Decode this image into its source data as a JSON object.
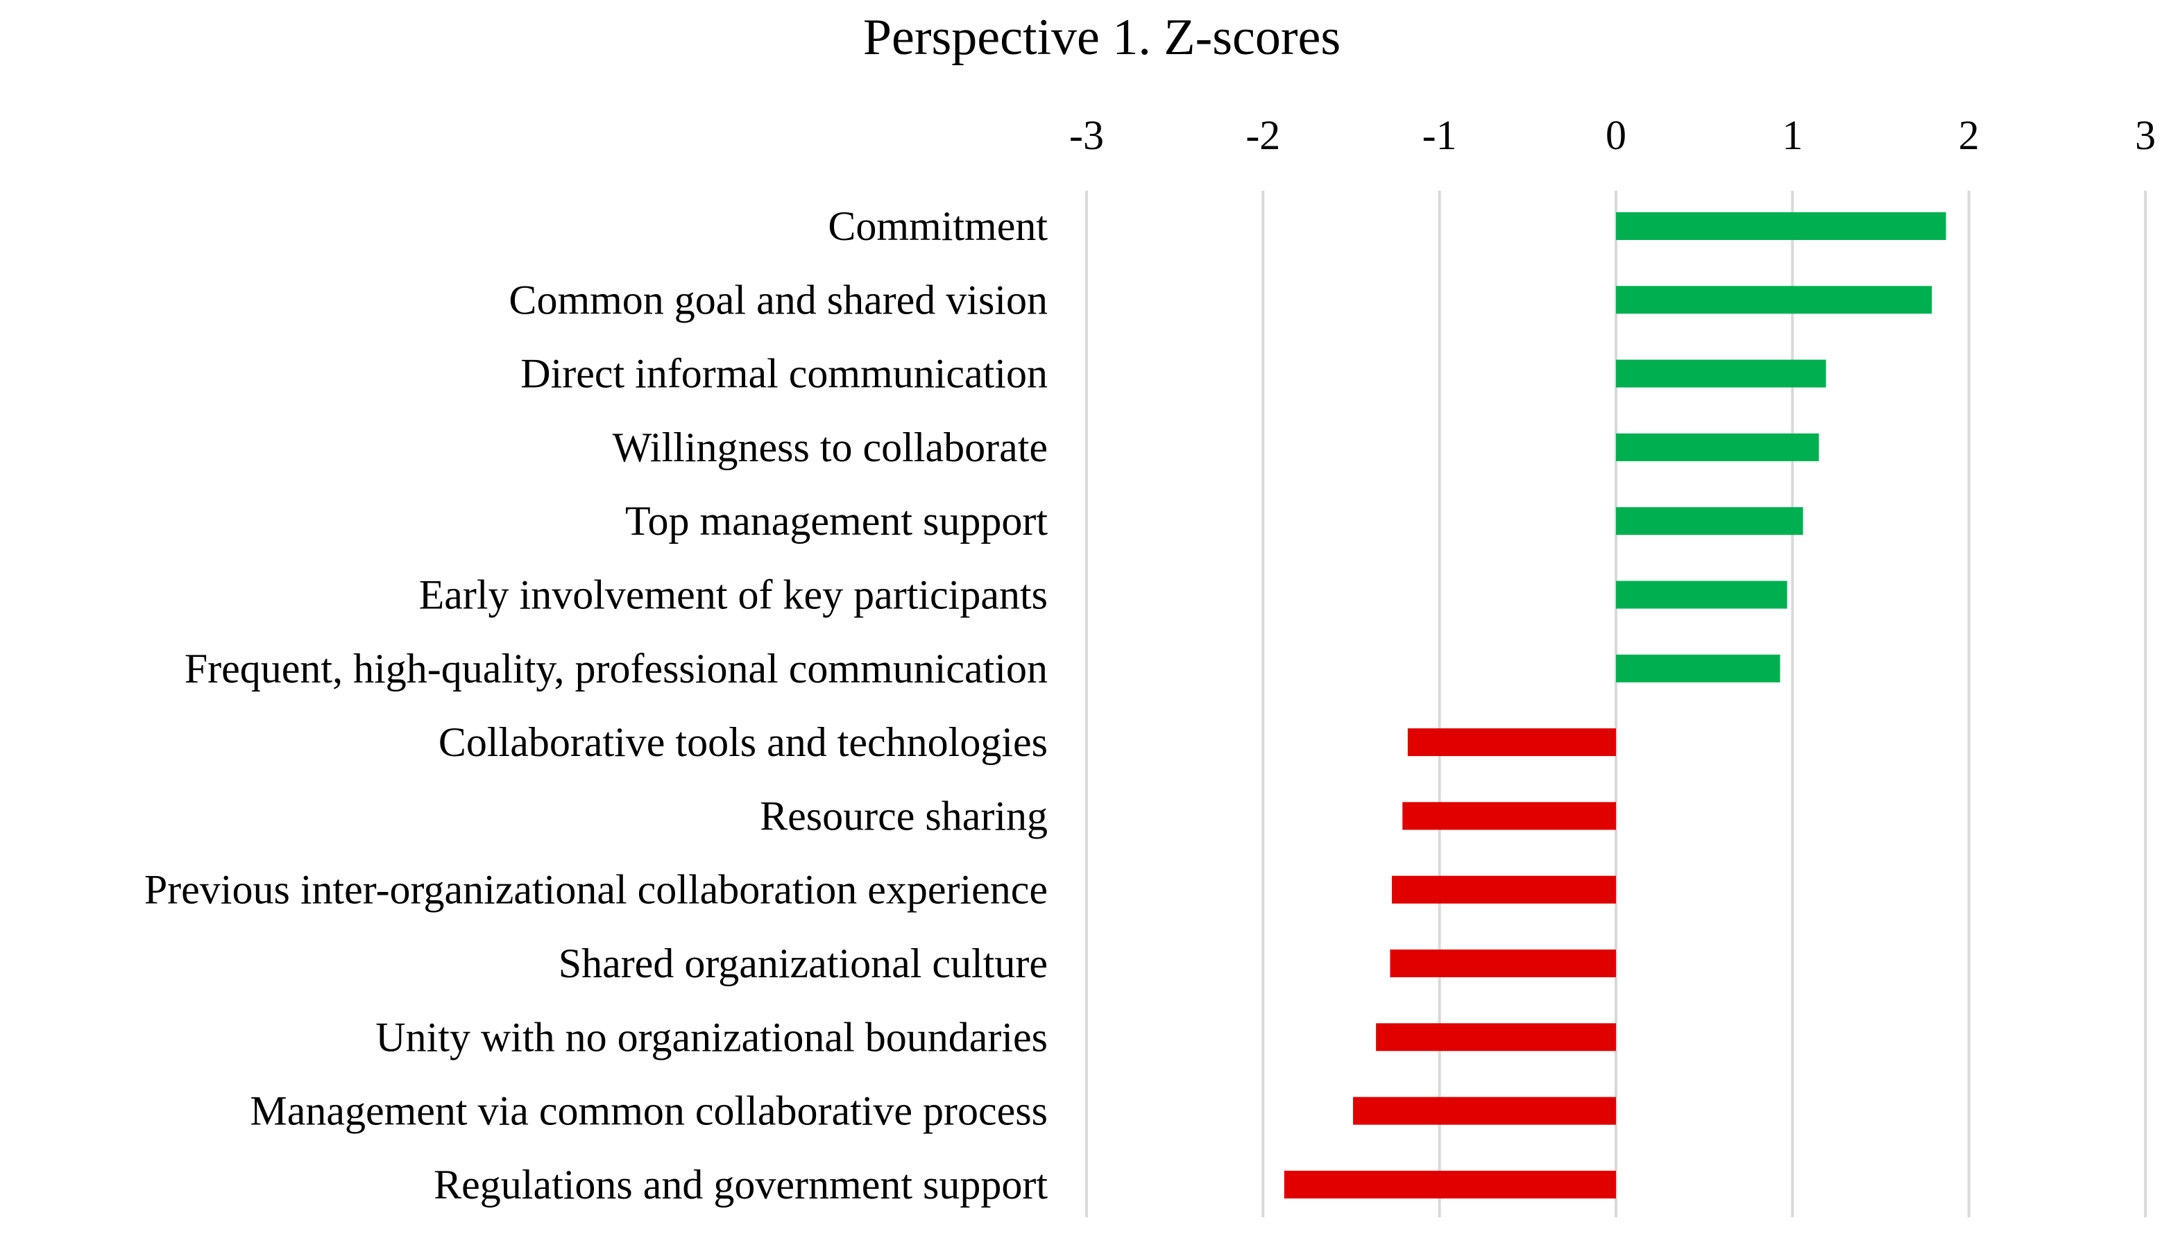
{
  "chart_data": {
    "type": "bar",
    "orientation": "horizontal",
    "title": "Perspective 1. Z-scores",
    "xlabel": "",
    "ylabel": "",
    "xlim": [
      -3,
      3
    ],
    "ticks": [
      -3,
      -2,
      -1,
      0,
      1,
      2,
      3
    ],
    "tick_labels": [
      "-3",
      "-2",
      "-1",
      "0",
      "1",
      "2",
      "3"
    ],
    "axis_position": "top",
    "grid": true,
    "legend": "none",
    "colors": {
      "positive": "#00b050",
      "negative": "#e00000",
      "grid": "#d9d9d9"
    },
    "categories": [
      "Commitment",
      "Common goal and shared vision",
      "Direct informal communication",
      "Willingness to collaborate",
      "Top management support",
      "Early involvement of key participants",
      "Frequent, high-quality, professional communication",
      "Collaborative tools and technologies",
      "Resource sharing",
      "Previous inter-organizational collaboration experience",
      "Shared organizational culture",
      "Unity with no organizational boundaries",
      "Management via common collaborative process",
      "Regulations and government support"
    ],
    "values": [
      1.87,
      1.79,
      1.19,
      1.15,
      1.06,
      0.97,
      0.93,
      -1.18,
      -1.21,
      -1.27,
      -1.28,
      -1.36,
      -1.49,
      -1.88
    ]
  }
}
